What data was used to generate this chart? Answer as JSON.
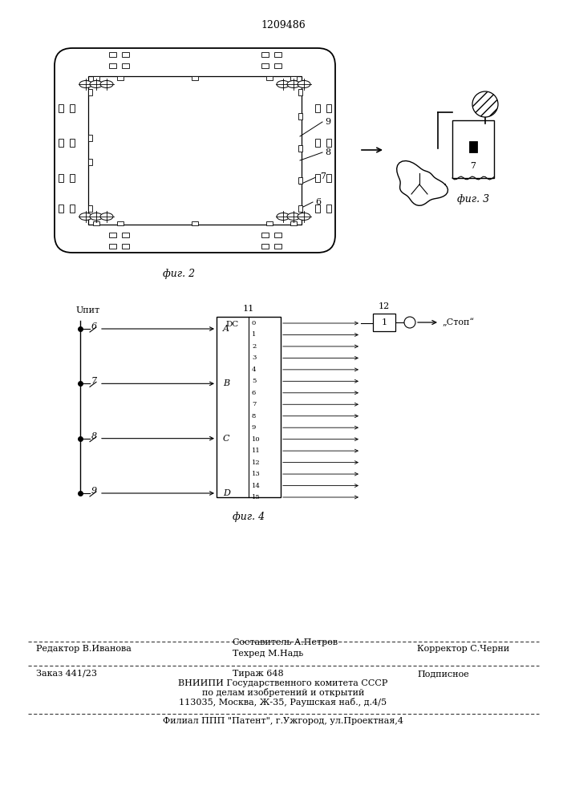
{
  "patent_number": "1209486",
  "fig2_caption": "фиг. 2",
  "fig3_caption": "фиг. 3",
  "fig4_caption": "фиг. 4",
  "footer_line1_left": "Редактор В.Иванова",
  "footer_line1_center": "Составитель А.Петров",
  "footer_line2_center": "Техред М.Надь",
  "footer_line2_right": "Корректор С.Черни",
  "footer_line3_left": "Заказ 441/23",
  "footer_line3_center": "Тираж 648",
  "footer_line3_right": "Подписное",
  "footer_line4": "ВНИИПИ Государственного комитета СССР",
  "footer_line5": "по делам изобретений и открытий",
  "footer_line6": "113035, Москва, Ж-35, Раушская наб., д.4/5",
  "footer_line7": "Филиал ППП \"Патент\", г.Ужгород, ул.Проектная,4",
  "bg_color": "#ffffff",
  "line_color": "#000000"
}
